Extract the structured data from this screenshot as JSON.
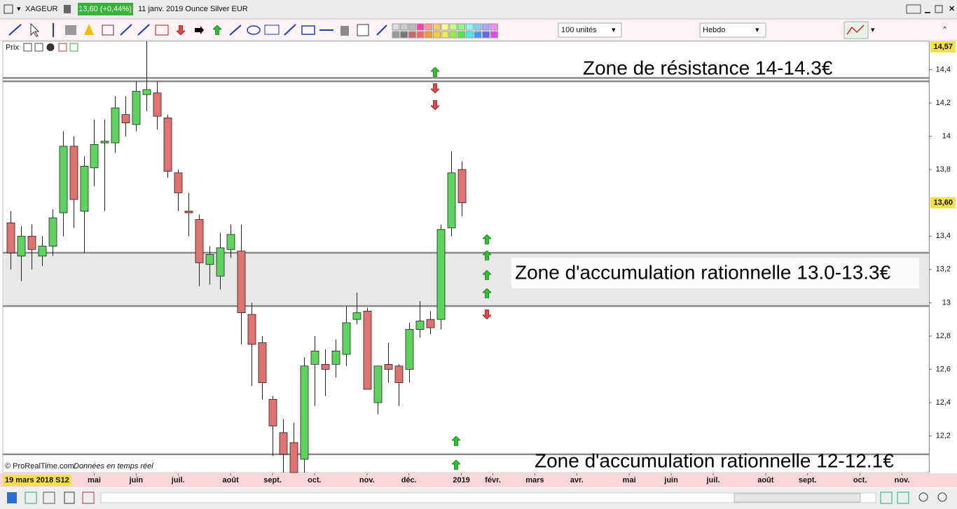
{
  "window": {
    "symbol": "XAGEUR",
    "change": "13,60 (+0,44%)",
    "description": "11 janv. 2019 Ounce Silver EUR"
  },
  "toolbar": {
    "quantity": "100 unités",
    "period": "Hebdo"
  },
  "panel": {
    "title": "Prix"
  },
  "footer": {
    "copyright": "© ProRealTime.com",
    "feed": "Données en temps réel",
    "cursor_date": "19 mars 2018 S12"
  },
  "chart_data": {
    "type": "candlestick",
    "x": [
      "2018-03-19",
      "2018-03-26",
      "2018-04-02",
      "2018-04-09",
      "2018-04-16",
      "2018-04-23",
      "2018-04-30",
      "2018-05-07",
      "2018-05-14",
      "2018-05-21",
      "2018-05-28",
      "2018-06-04",
      "2018-06-11",
      "2018-06-18",
      "2018-06-25",
      "2018-07-02",
      "2018-07-09",
      "2018-07-16",
      "2018-07-23",
      "2018-07-30",
      "2018-08-06",
      "2018-08-13",
      "2018-08-20",
      "2018-08-27",
      "2018-09-03",
      "2018-09-10",
      "2018-09-17",
      "2018-09-24",
      "2018-10-01",
      "2018-10-08",
      "2018-10-15",
      "2018-10-22",
      "2018-10-29",
      "2018-11-05",
      "2018-11-12",
      "2018-11-19",
      "2018-11-26",
      "2018-12-03",
      "2018-12-10",
      "2018-12-17",
      "2018-12-24",
      "2018-12-31",
      "2019-01-07",
      "2019-01-14"
    ],
    "open": [
      13.48,
      13.28,
      13.4,
      13.28,
      13.34,
      13.54,
      13.94,
      13.55,
      13.81,
      13.96,
      13.96,
      14.13,
      14.07,
      14.25,
      14.26,
      14.11,
      13.78,
      13.55,
      13.5,
      13.23,
      13.16,
      13.32,
      13.31,
      12.93,
      12.76,
      12.42,
      12.22,
      12.16,
      12.06,
      12.63,
      12.63,
      12.63,
      12.69,
      12.9,
      12.95,
      12.4,
      12.63,
      12.62,
      12.6,
      12.84,
      12.9,
      12.9,
      13.45,
      13.8
    ],
    "high": [
      13.55,
      13.46,
      13.47,
      13.4,
      13.56,
      14.03,
      14.0,
      13.88,
      14.1,
      14.1,
      14.24,
      14.24,
      14.33,
      14.57,
      14.33,
      14.13,
      13.8,
      13.66,
      13.53,
      13.34,
      13.42,
      13.47,
      13.47,
      13.0,
      12.8,
      12.44,
      12.3,
      12.28,
      12.67,
      12.8,
      12.72,
      12.78,
      12.98,
      13.06,
      12.97,
      12.62,
      12.76,
      12.63,
      12.88,
      13.01,
      12.95,
      13.47,
      13.91,
      13.85
    ],
    "low": [
      13.2,
      13.13,
      13.2,
      13.22,
      13.28,
      13.4,
      13.45,
      13.3,
      13.7,
      13.55,
      13.9,
      14.0,
      14.03,
      14.15,
      14.04,
      13.75,
      13.55,
      13.4,
      13.1,
      13.11,
      13.08,
      13.27,
      12.75,
      12.5,
      12.42,
      12.08,
      11.98,
      11.98,
      11.98,
      12.38,
      12.44,
      12.55,
      12.62,
      12.87,
      12.48,
      12.33,
      12.52,
      12.38,
      12.52,
      12.79,
      12.81,
      12.84,
      13.4,
      13.52
    ],
    "close": [
      13.3,
      13.4,
      13.32,
      13.34,
      13.51,
      13.94,
      13.62,
      13.82,
      13.95,
      13.97,
      14.17,
      14.08,
      14.27,
      14.28,
      14.12,
      13.79,
      13.66,
      13.54,
      13.24,
      13.29,
      13.33,
      13.41,
      12.94,
      12.75,
      12.52,
      12.26,
      12.09,
      11.98,
      12.62,
      12.71,
      12.6,
      12.71,
      12.88,
      12.94,
      12.48,
      12.62,
      12.6,
      12.52,
      12.84,
      12.89,
      12.85,
      13.44,
      13.78,
      13.6
    ],
    "up_color": "#5fd35f",
    "down_color": "#e07272",
    "xlim": [
      "2018-03-14",
      "2019-11-22"
    ],
    "xticks": [
      {
        "value": "2018-05-14",
        "label": "mai"
      },
      {
        "value": "2018-06-11",
        "label": "juin"
      },
      {
        "value": "2018-07-09",
        "label": "juil."
      },
      {
        "value": "2018-08-13",
        "label": "août"
      },
      {
        "value": "2018-09-10",
        "label": "sept."
      },
      {
        "value": "2018-10-08",
        "label": "oct."
      },
      {
        "value": "2018-11-12",
        "label": "nov."
      },
      {
        "value": "2018-12-10",
        "label": "déc."
      },
      {
        "value": "2019-01-14",
        "label": "2019"
      },
      {
        "value": "2019-02-04",
        "label": "févr."
      },
      {
        "value": "2019-03-04",
        "label": "mars"
      },
      {
        "value": "2019-04-01",
        "label": "avr."
      },
      {
        "value": "2019-05-06",
        "label": "mai"
      },
      {
        "value": "2019-06-03",
        "label": "juin"
      },
      {
        "value": "2019-07-01",
        "label": "juil."
      },
      {
        "value": "2019-08-05",
        "label": "août"
      },
      {
        "value": "2019-09-02",
        "label": "sept."
      },
      {
        "value": "2019-10-07",
        "label": "oct."
      },
      {
        "value": "2019-11-04",
        "label": "nov."
      }
    ],
    "ylim": [
      11.98,
      14.57
    ],
    "yticks": [
      {
        "value": 14.4,
        "label": "14,4"
      },
      {
        "value": 14.2,
        "label": "14,2"
      },
      14,
      {
        "value": 13.8,
        "label": "13,8"
      },
      {
        "value": 13.4,
        "label": "13,4"
      },
      {
        "value": 13.2,
        "label": "13,2"
      },
      13,
      {
        "value": 12.8,
        "label": "12,8"
      },
      {
        "value": 12.6,
        "label": "12,6"
      },
      {
        "value": 12.4,
        "label": "12,4"
      },
      {
        "value": 12.2,
        "label": "12,2"
      }
    ],
    "axis_top": {
      "value": 14.57,
      "label": "14,57"
    },
    "last_price": {
      "value": 13.6,
      "label": "13,60"
    },
    "hlines": [
      14.35,
      14.33,
      13.3,
      12.98,
      12.09
    ],
    "zone": [
      12.98,
      13.3
    ],
    "annotations": [
      "Zone de résistance 14-14.3€",
      "Zone d'accumulation rationnelle 13.0-13.3€",
      "Zone d'accumulation rationnelle 12-12.1€"
    ]
  }
}
